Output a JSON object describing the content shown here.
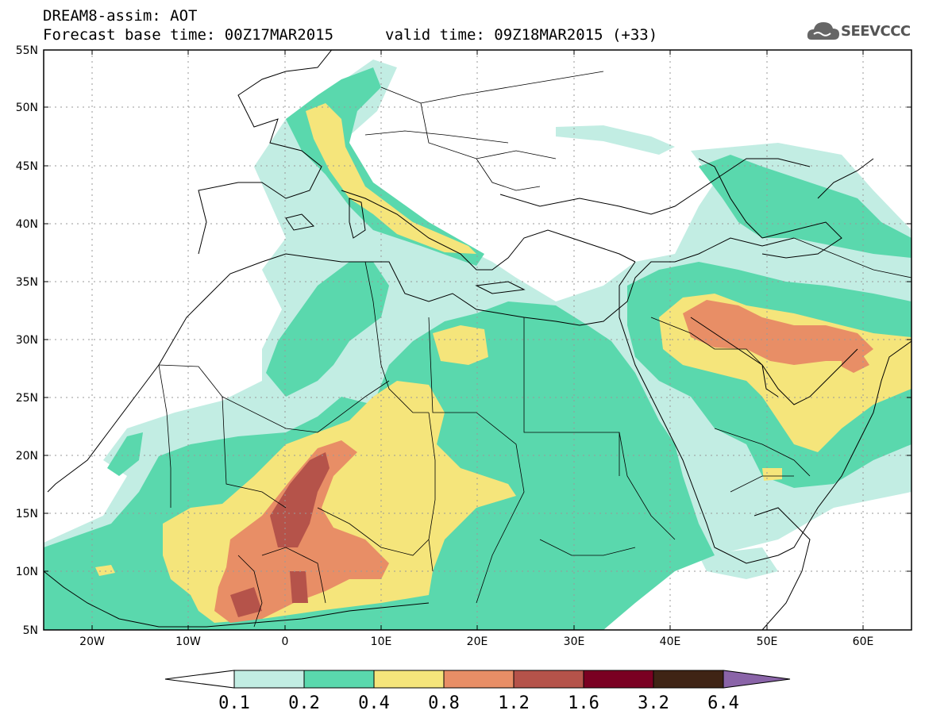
{
  "header": {
    "model_line": "DREAM8-assim: AOT",
    "base_time": "Forecast base time: 00Z17MAR2015",
    "valid_time": "valid time: 09Z18MAR2015 (+33)",
    "logo_text": "SEEVCCC",
    "logo_icon": "cloud-icon"
  },
  "map": {
    "lat_labels": [
      "55N",
      "50N",
      "45N",
      "40N",
      "35N",
      "30N",
      "25N",
      "20N",
      "15N",
      "10N",
      "5N"
    ],
    "lon_labels": [
      "20W",
      "10W",
      "0",
      "10E",
      "20E",
      "30E",
      "40E",
      "50E",
      "60E"
    ],
    "grid": "dashed",
    "land_color": "#ffffff",
    "border_color": "#000000"
  },
  "colorbar": {
    "ticks": [
      "0.1",
      "0.2",
      "0.4",
      "0.8",
      "1.2",
      "1.6",
      "3.2",
      "6.4"
    ],
    "colors": [
      "#ffffff",
      "#c2ede3",
      "#5ad8ad",
      "#f5e57b",
      "#e88e66",
      "#b5534a",
      "#7a0022",
      "#3f2415",
      "#8a64a8"
    ]
  }
}
